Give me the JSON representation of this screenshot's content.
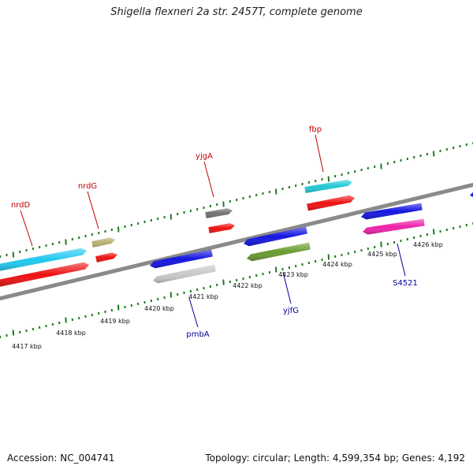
{
  "title": "Shigella flexneri 2a str. 2457T, complete genome",
  "footer": {
    "accession": "Accession: NC_004741",
    "summary": "Topology: circular; Length: 4,599,354 bp; Genes: 4,192"
  },
  "colors": {
    "backbone": "#8a8a8a",
    "tick": "#1e7a1e",
    "label_forward": "#c00000",
    "label_reverse": "#000099"
  },
  "scale_labels": [
    "4417 kbp",
    "4418 kbp",
    "4419 kbp",
    "4420 kbp",
    "4421 kbp",
    "4422 kbp",
    "4423 kbp",
    "4424 kbp",
    "4425 kbp",
    "4426 kbp"
  ],
  "gene_labels": [
    {
      "name": "nrdD",
      "strand": "forward"
    },
    {
      "name": "nrdG",
      "strand": "forward"
    },
    {
      "name": "yjgA",
      "strand": "forward"
    },
    {
      "name": "fbp",
      "strand": "forward"
    },
    {
      "name": "pmbA",
      "strand": "reverse"
    },
    {
      "name": "yjfG",
      "strand": "reverse"
    },
    {
      "name": "S4521",
      "strand": "reverse"
    }
  ],
  "features": [
    {
      "color": "#1ec8f0",
      "strand": "forward",
      "track": "outer"
    },
    {
      "color": "#ee1111",
      "strand": "forward",
      "track": "inner"
    },
    {
      "color": "#b8b070",
      "strand": "forward",
      "track": "outer"
    },
    {
      "color": "#ee1111",
      "strand": "forward",
      "track": "inner"
    },
    {
      "color": "#707070",
      "strand": "forward",
      "track": "outer"
    },
    {
      "color": "#ee1111",
      "strand": "forward",
      "track": "inner"
    },
    {
      "color": "#22c8d4",
      "strand": "forward",
      "track": "outer"
    },
    {
      "color": "#ee1111",
      "strand": "forward",
      "track": "inner"
    },
    {
      "color": "#1515e0",
      "strand": "reverse",
      "track": "inner"
    },
    {
      "color": "#c8c8c8",
      "strand": "reverse",
      "track": "outer"
    },
    {
      "color": "#1515e0",
      "strand": "reverse",
      "track": "inner"
    },
    {
      "color": "#6a9a30",
      "strand": "reverse",
      "track": "outer"
    },
    {
      "color": "#1515e0",
      "strand": "reverse",
      "track": "inner"
    },
    {
      "color": "#ee22aa",
      "strand": "reverse",
      "track": "outer"
    },
    {
      "color": "#1515e0",
      "strand": "reverse",
      "track": "inner"
    }
  ]
}
